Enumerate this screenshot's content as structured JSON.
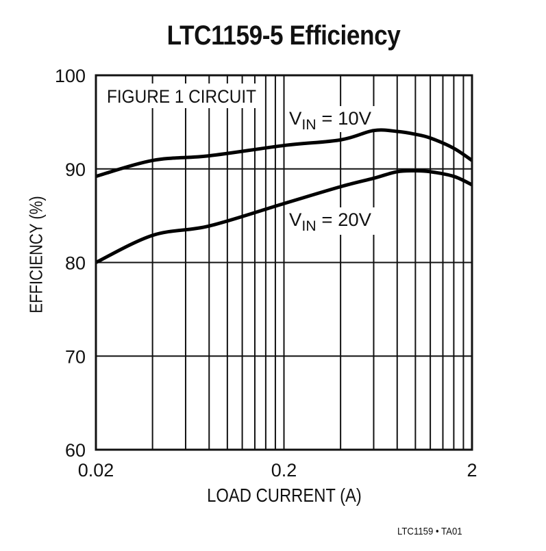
{
  "chart_data": {
    "type": "line",
    "title": "LTC1159-5 Efficiency",
    "xlabel": "LOAD CURRENT (A)",
    "ylabel": "EFFICIENCY (%)",
    "x_scale": "log",
    "xlim": [
      0.02,
      2
    ],
    "ylim": [
      60,
      100
    ],
    "x_tick_labels": [
      "0.02",
      "0.2",
      "2"
    ],
    "x_ticks": [
      0.02,
      0.2,
      2
    ],
    "y_ticks": [
      60,
      70,
      80,
      90,
      100
    ],
    "y_tick_labels": [
      "60",
      "70",
      "80",
      "90",
      "100"
    ],
    "x_minor_grid": [
      0.04,
      0.06,
      0.08,
      0.1,
      0.12,
      0.14,
      0.16,
      0.18,
      0.4,
      0.6,
      0.8,
      1.0,
      1.2,
      1.4,
      1.6,
      1.8
    ],
    "grid": true,
    "annotations": [
      {
        "text": "FIGURE 1 CIRCUIT",
        "position": "top-left"
      }
    ],
    "x": [
      0.02,
      0.04,
      0.08,
      0.2,
      0.4,
      0.6,
      0.8,
      1.0,
      1.2,
      1.6,
      2.0
    ],
    "series": [
      {
        "name": "VIN = 10V",
        "label_main": "V",
        "label_sub": "IN",
        "label_rest": " = 10V",
        "values": [
          89.2,
          90.9,
          91.4,
          92.5,
          93.1,
          94.1,
          94.0,
          93.7,
          93.3,
          92.2,
          90.9
        ]
      },
      {
        "name": "VIN = 20V",
        "label_main": "V",
        "label_sub": "IN",
        "label_rest": " = 20V",
        "values": [
          80.0,
          82.9,
          83.9,
          86.3,
          88.1,
          89.0,
          89.7,
          89.8,
          89.7,
          89.2,
          88.3
        ]
      }
    ]
  },
  "footer": "LTC1159 • TA01"
}
